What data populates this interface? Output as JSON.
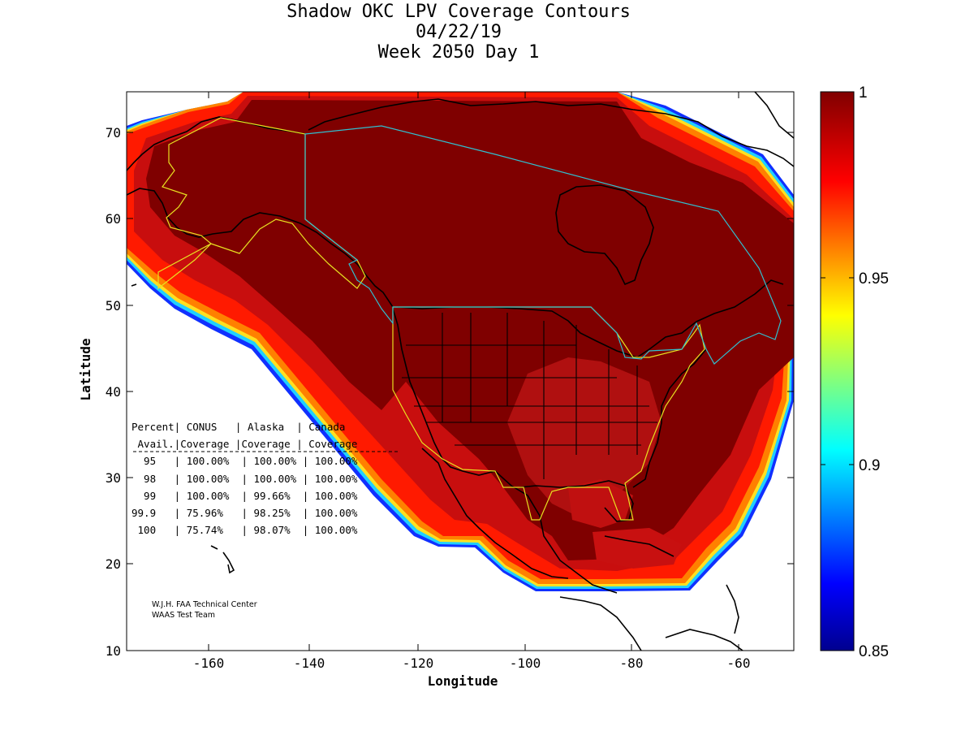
{
  "title": {
    "line1": "Shadow OKC LPV Coverage Contours",
    "line2": "04/22/19",
    "line3": "Week 2050 Day 1"
  },
  "axes": {
    "xlabel": "Longitude",
    "ylabel": "Latitude",
    "xticks": [
      "-160",
      "-140",
      "-120",
      "-100",
      "-80",
      "-60"
    ],
    "yticks": [
      "70",
      "60",
      "50",
      "40",
      "30",
      "20",
      "10"
    ],
    "xlim": [
      -175,
      -50
    ],
    "ylim": [
      10,
      75
    ]
  },
  "colorbar": {
    "ticks": [
      "1",
      "0.95",
      "0.9",
      "0.85"
    ],
    "range": [
      0.85,
      1
    ]
  },
  "table": {
    "header1": "Percent| CONUS   | Alaska  | Canada",
    "header2": " Avail.|Coverage |Coverage | Coverage",
    "rows": [
      "  95   | 100.00%  | 100.00% | 100.00%",
      "  98   | 100.00%  | 100.00% | 100.00%",
      "  99   | 100.00%  | 99.66%  | 100.00%",
      "99.9   | 75.96%   | 98.25%  | 100.00%",
      " 100   | 75.74%   | 98.07%  | 100.00%"
    ]
  },
  "credits": {
    "line1": "W.J.H. FAA Technical Center",
    "line2": "WAAS Test Team"
  },
  "colors": {
    "coverage_core": "#7f0000",
    "coverage_high": "#c01010",
    "coverage_edge": "#ff2000",
    "service_volume_alaska_conus": "#e8e020",
    "service_volume_canada": "#30c0d0"
  }
}
